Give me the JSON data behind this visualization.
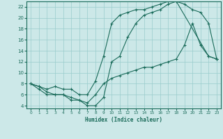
{
  "title": "",
  "xlabel": "Humidex (Indice chaleur)",
  "bg_color": "#cce8e8",
  "line_color": "#1a6b5a",
  "grid_color": "#99cccc",
  "xlim": [
    -0.5,
    23.5
  ],
  "ylim": [
    3.5,
    23
  ],
  "xticks": [
    0,
    1,
    2,
    3,
    4,
    5,
    6,
    7,
    8,
    9,
    10,
    11,
    12,
    13,
    14,
    15,
    16,
    17,
    18,
    19,
    20,
    21,
    22,
    23
  ],
  "yticks": [
    4,
    6,
    8,
    10,
    12,
    14,
    16,
    18,
    20,
    22
  ],
  "curve1_x": [
    0,
    1,
    2,
    3,
    4,
    5,
    6,
    7,
    8,
    9,
    10,
    11,
    12,
    13,
    14,
    15,
    16,
    17,
    18,
    22,
    23
  ],
  "curve1_y": [
    8,
    7.5,
    7,
    7.5,
    7,
    7,
    6,
    6,
    8.5,
    13,
    19,
    20.5,
    21,
    21.5,
    21.5,
    22,
    22.5,
    23,
    23,
    13,
    12.5
  ],
  "curve2_x": [
    0,
    1,
    2,
    3,
    4,
    5,
    6,
    7,
    8,
    9,
    10,
    11,
    12,
    13,
    14,
    15,
    16,
    17,
    18,
    19,
    20,
    21,
    22,
    23
  ],
  "curve2_y": [
    8,
    7,
    6,
    6,
    6,
    5,
    5,
    4,
    4,
    5.5,
    12,
    13,
    16.5,
    19,
    20.5,
    21,
    21.5,
    22.5,
    23,
    22.5,
    21.5,
    21,
    19,
    12.5
  ],
  "curve3_x": [
    0,
    1,
    2,
    3,
    4,
    5,
    6,
    7,
    8,
    9,
    10,
    11,
    12,
    13,
    14,
    15,
    16,
    17,
    18,
    19,
    20,
    21,
    22,
    23
  ],
  "curve3_y": [
    8,
    7.5,
    6.5,
    6,
    6,
    5.5,
    5,
    4.5,
    6,
    8,
    9,
    9.5,
    10,
    10.5,
    11,
    11,
    11.5,
    12,
    12.5,
    15,
    19,
    15,
    13,
    12.5
  ]
}
